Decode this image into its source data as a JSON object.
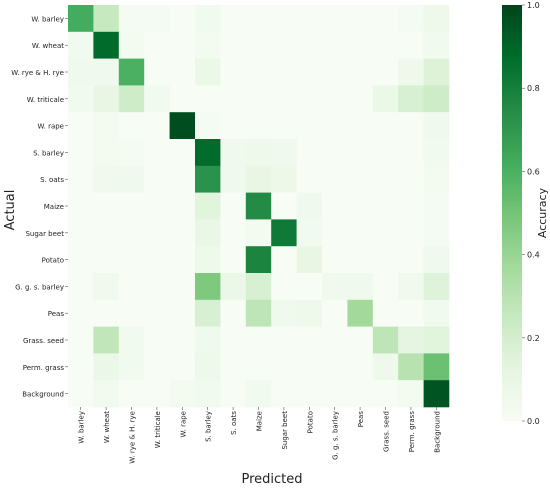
{
  "chart_data": {
    "type": "heatmap",
    "title": "",
    "xlabel": "Predicted",
    "ylabel": "Actual",
    "row_labels": [
      "W. barley",
      "W. wheat",
      "W. rye & H. rye",
      "W. triticale",
      "W. rape",
      "S. barley",
      "S. oats",
      "Maize",
      "Sugar beet",
      "Potato",
      "G. g. s. barley",
      "Peas",
      "Grass. seed",
      "Perm. grass",
      "Background"
    ],
    "col_labels": [
      "W. barley",
      "W. wheat",
      "W. rye & H. rye",
      "W. triticale",
      "W. rape",
      "S. barley",
      "S. oats",
      "Maize",
      "Sugar beet",
      "Potato",
      "G. g. s. barley",
      "Peas",
      "Grass. seed",
      "Perm. grass",
      "Background"
    ],
    "values": [
      [
        0.62,
        0.25,
        0.02,
        0.02,
        0.0,
        0.04,
        0.0,
        0.0,
        0.0,
        0.0,
        0.0,
        0.0,
        0.0,
        0.02,
        0.06
      ],
      [
        0.04,
        0.88,
        0.03,
        0.0,
        0.0,
        0.03,
        0.0,
        0.0,
        0.0,
        0.0,
        0.0,
        0.0,
        0.0,
        0.0,
        0.04
      ],
      [
        0.05,
        0.05,
        0.6,
        0.0,
        0.0,
        0.08,
        0.0,
        0.0,
        0.0,
        0.0,
        0.0,
        0.0,
        0.0,
        0.06,
        0.16
      ],
      [
        0.04,
        0.1,
        0.22,
        0.04,
        0.0,
        0.0,
        0.0,
        0.0,
        0.0,
        0.0,
        0.0,
        0.0,
        0.08,
        0.18,
        0.22
      ],
      [
        0.0,
        0.03,
        0.0,
        0.0,
        0.97,
        0.02,
        0.0,
        0.0,
        0.0,
        0.0,
        0.0,
        0.0,
        0.0,
        0.0,
        0.05
      ],
      [
        0.0,
        0.03,
        0.02,
        0.0,
        0.0,
        0.88,
        0.05,
        0.06,
        0.05,
        0.0,
        0.0,
        0.0,
        0.0,
        0.0,
        0.04
      ],
      [
        0.0,
        0.05,
        0.05,
        0.0,
        0.0,
        0.72,
        0.05,
        0.1,
        0.07,
        0.0,
        0.0,
        0.0,
        0.0,
        0.0,
        0.03
      ],
      [
        0.0,
        0.0,
        0.0,
        0.0,
        0.0,
        0.14,
        0.0,
        0.75,
        0.0,
        0.05,
        0.0,
        0.0,
        0.0,
        0.0,
        0.02
      ],
      [
        0.0,
        0.0,
        0.0,
        0.0,
        0.0,
        0.09,
        0.0,
        0.03,
        0.82,
        0.04,
        0.0,
        0.0,
        0.0,
        0.0,
        0.02
      ],
      [
        0.0,
        0.0,
        0.0,
        0.0,
        0.0,
        0.06,
        0.0,
        0.78,
        0.0,
        0.1,
        0.0,
        0.0,
        0.0,
        0.0,
        0.05
      ],
      [
        0.0,
        0.05,
        0.0,
        0.0,
        0.0,
        0.47,
        0.08,
        0.18,
        0.0,
        0.0,
        0.05,
        0.05,
        0.0,
        0.05,
        0.15
      ],
      [
        0.0,
        0.0,
        0.0,
        0.0,
        0.0,
        0.18,
        0.0,
        0.28,
        0.05,
        0.06,
        0.0,
        0.37,
        0.0,
        0.0,
        0.04
      ],
      [
        0.0,
        0.27,
        0.04,
        0.0,
        0.0,
        0.05,
        0.0,
        0.0,
        0.0,
        0.0,
        0.0,
        0.0,
        0.28,
        0.12,
        0.14
      ],
      [
        0.0,
        0.08,
        0.04,
        0.0,
        0.0,
        0.06,
        0.0,
        0.0,
        0.0,
        0.0,
        0.0,
        0.0,
        0.06,
        0.3,
        0.52
      ],
      [
        0.0,
        0.04,
        0.0,
        0.0,
        0.03,
        0.04,
        0.0,
        0.04,
        0.0,
        0.0,
        0.0,
        0.0,
        0.0,
        0.03,
        0.95
      ]
    ],
    "colorbar": {
      "label": "Accuracy",
      "range": [
        0.0,
        1.0
      ],
      "ticks": [
        "0.0",
        "0.2",
        "0.4",
        "0.6",
        "0.8",
        "1.0"
      ]
    },
    "colormap": [
      "#f7fcf5",
      "#e5f5e0",
      "#c7e9c0",
      "#a1d99b",
      "#74c476",
      "#41ab5d",
      "#238b45",
      "#006d2c",
      "#00441b"
    ],
    "grid": false
  }
}
